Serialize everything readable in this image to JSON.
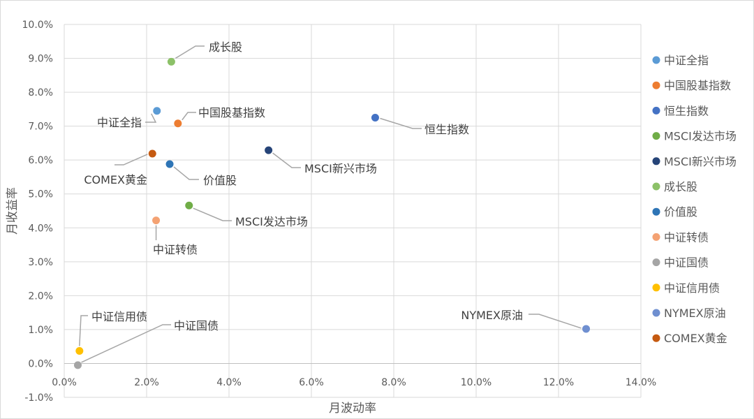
{
  "chart_data": {
    "type": "scatter",
    "xlabel": "月波动率",
    "ylabel": "月收益率",
    "xlim": [
      0.0,
      14.0
    ],
    "ylim": [
      -1.0,
      10.0
    ],
    "x_ticks": [
      "0.0%",
      "2.0%",
      "4.0%",
      "6.0%",
      "8.0%",
      "10.0%",
      "12.0%",
      "14.0%"
    ],
    "y_ticks": [
      "-1.0%",
      "0.0%",
      "1.0%",
      "2.0%",
      "3.0%",
      "4.0%",
      "5.0%",
      "6.0%",
      "7.0%",
      "8.0%",
      "9.0%",
      "10.0%"
    ],
    "grid": true,
    "legend_position": "right",
    "series": [
      {
        "name": "中证全指",
        "x": 2.25,
        "y": 7.45,
        "color": "#5b9bd5"
      },
      {
        "name": "中国股基指数",
        "x": 2.76,
        "y": 7.08,
        "color": "#ed7d31"
      },
      {
        "name": "恒生指数",
        "x": 7.55,
        "y": 7.25,
        "color": "#4472c4"
      },
      {
        "name": "MSCI发达市场",
        "x": 3.03,
        "y": 4.66,
        "color": "#70ad47"
      },
      {
        "name": "MSCI新兴市场",
        "x": 4.96,
        "y": 6.29,
        "color": "#264478"
      },
      {
        "name": "成长股",
        "x": 2.6,
        "y": 8.9,
        "color": "#8cc168"
      },
      {
        "name": "价值股",
        "x": 2.56,
        "y": 5.88,
        "color": "#2e75b6"
      },
      {
        "name": "中证转债",
        "x": 2.23,
        "y": 4.22,
        "color": "#f4a273"
      },
      {
        "name": "中证国债",
        "x": 0.33,
        "y": -0.05,
        "color": "#a5a5a5"
      },
      {
        "name": "中证信用债",
        "x": 0.37,
        "y": 0.37,
        "color": "#ffc000"
      },
      {
        "name": "NYMEX原油",
        "x": 12.67,
        "y": 1.02,
        "color": "#6f8fd0"
      },
      {
        "name": "COMEX黄金",
        "x": 2.14,
        "y": 6.19,
        "color": "#c55a11"
      }
    ]
  }
}
